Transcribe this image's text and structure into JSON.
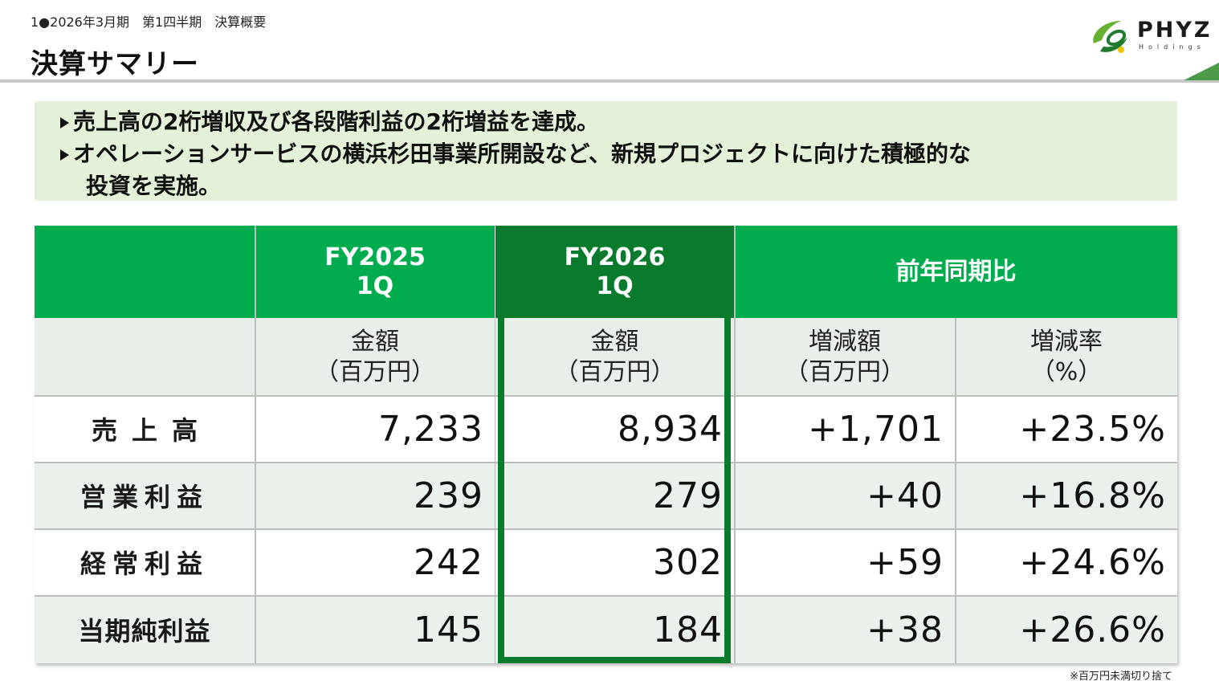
{
  "header": {
    "breadcrumb": "1●2026年3月期　第1四半期　決算概要",
    "title": "決算サマリー",
    "logo_text": "PHYZ",
    "logo_sub": "Holdings"
  },
  "summary": {
    "bullet1": "売上高の2桁増収及び各段階利益の2桁増益を達成。",
    "bullet2_line1": "オペレーションサービスの横浜杉田事業所開設など、新規プロジェクトに向けた積極的な",
    "bullet2_line2": "投資を実施。"
  },
  "table": {
    "headers": {
      "fy2025_a": "FY2025",
      "fy2025_b": "1Q",
      "fy2026_a": "FY2026",
      "fy2026_b": "1Q",
      "yoy": "前年同期比"
    },
    "subheaders": {
      "amount_a": "金額",
      "amount_b": "（百万円）",
      "change_a": "増減額",
      "change_b": "（百万円）",
      "rate_a": "増減率",
      "rate_b": "（%）"
    },
    "rows": [
      {
        "label": "売上高",
        "fy2025": "7,233",
        "fy2026": "8,934",
        "change": "+1,701",
        "rate": "+23.5%"
      },
      {
        "label": "営業利益",
        "fy2025": "239",
        "fy2026": "279",
        "change": "+40",
        "rate": "+16.8%"
      },
      {
        "label": "経常利益",
        "fy2025": "242",
        "fy2026": "302",
        "change": "+59",
        "rate": "+24.6%"
      },
      {
        "label": "当期純利益",
        "fy2025": "145",
        "fy2026": "184",
        "change": "+38",
        "rate": "+26.6%"
      }
    ]
  },
  "footnote": "※百万円未満切り捨て",
  "colors": {
    "header_green": "#00ac4e",
    "highlight_green": "#0a7a2c",
    "summary_bg": "#e4f1d9"
  }
}
